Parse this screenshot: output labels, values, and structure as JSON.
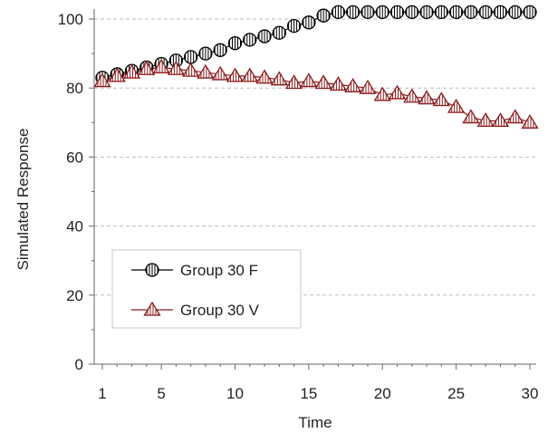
{
  "chart_data": {
    "type": "line",
    "title": "",
    "xlabel": "Time",
    "ylabel": "Simulated Response",
    "xlim": [
      1,
      30
    ],
    "ylim": [
      0,
      105
    ],
    "xticks": [
      1,
      5,
      10,
      15,
      20,
      25,
      30
    ],
    "yticks": [
      0,
      20,
      40,
      60,
      80,
      100
    ],
    "grid": "horizontal-dashed",
    "legend_position": "bottom-left",
    "series": [
      {
        "name": "Group 30 F",
        "marker": "circle-vertical-hatch",
        "color": "#000000",
        "x": [
          1,
          2,
          3,
          4,
          5,
          6,
          7,
          8,
          9,
          10,
          11,
          12,
          13,
          14,
          15,
          16,
          17,
          18,
          19,
          20,
          21,
          22,
          23,
          24,
          25,
          26,
          27,
          28,
          29,
          30
        ],
        "values": [
          83,
          84,
          85,
          86,
          87,
          88,
          89,
          90,
          91,
          93,
          94,
          95,
          96,
          98,
          99,
          101,
          102,
          102,
          102,
          102,
          102,
          102,
          102,
          102,
          102,
          102,
          102,
          102,
          102,
          102
        ]
      },
      {
        "name": "Group 30 V",
        "marker": "triangle-hatch",
        "color": "#8B1A1A",
        "x": [
          1,
          2,
          3,
          4,
          5,
          6,
          7,
          8,
          9,
          10,
          11,
          12,
          13,
          14,
          15,
          16,
          17,
          18,
          19,
          20,
          21,
          22,
          23,
          24,
          25,
          26,
          27,
          28,
          29,
          30
        ],
        "values": [
          82,
          83.5,
          84.5,
          85.5,
          86,
          85.5,
          85,
          84.5,
          84,
          83.5,
          83.5,
          83,
          82.5,
          81.5,
          82,
          81.5,
          81,
          80.5,
          80,
          78,
          78.5,
          77.5,
          77,
          76.5,
          74.5,
          71.5,
          70.5,
          70.5,
          71.5,
          70
        ]
      }
    ]
  }
}
